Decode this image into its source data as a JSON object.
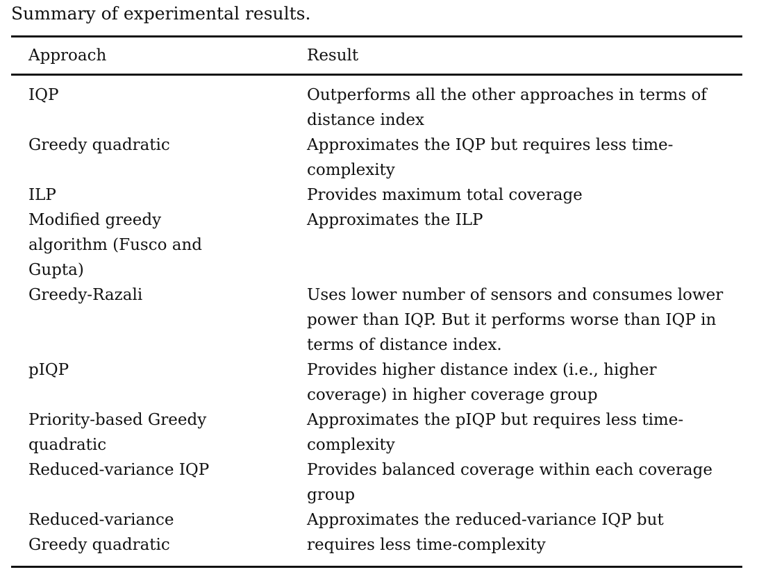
{
  "caption": "Summary of experimental results.",
  "table": {
    "headers": [
      "Approach",
      "Result"
    ],
    "rows": [
      {
        "approach": "IQP",
        "result": "Outperforms all the other approaches in terms of distance index"
      },
      {
        "approach": "Greedy quadratic",
        "result": "Approximates the IQP but requires less time-complexity"
      },
      {
        "approach": "ILP",
        "result": "Provides maximum total coverage"
      },
      {
        "approach": "Modified greedy algorithm (Fusco and Gupta)",
        "result": "Approximates the ILP"
      },
      {
        "approach": "Greedy-Razali",
        "result": "Uses lower number of sensors and consumes lower power than IQP. But it performs worse than IQP in terms of distance index."
      },
      {
        "approach": "pIQP",
        "result": "Provides higher distance index (i.e., higher coverage) in higher coverage group"
      },
      {
        "approach": "Priority-based Greedy quadratic",
        "result": "Approximates the pIQP but requires less time-complexity"
      },
      {
        "approach": "Reduced-variance IQP",
        "result": "Provides balanced coverage within each coverage group"
      },
      {
        "approach": "Reduced-variance Greedy quadratic",
        "result": "Approximates the reduced-variance IQP but requires less time-complexity"
      }
    ]
  }
}
